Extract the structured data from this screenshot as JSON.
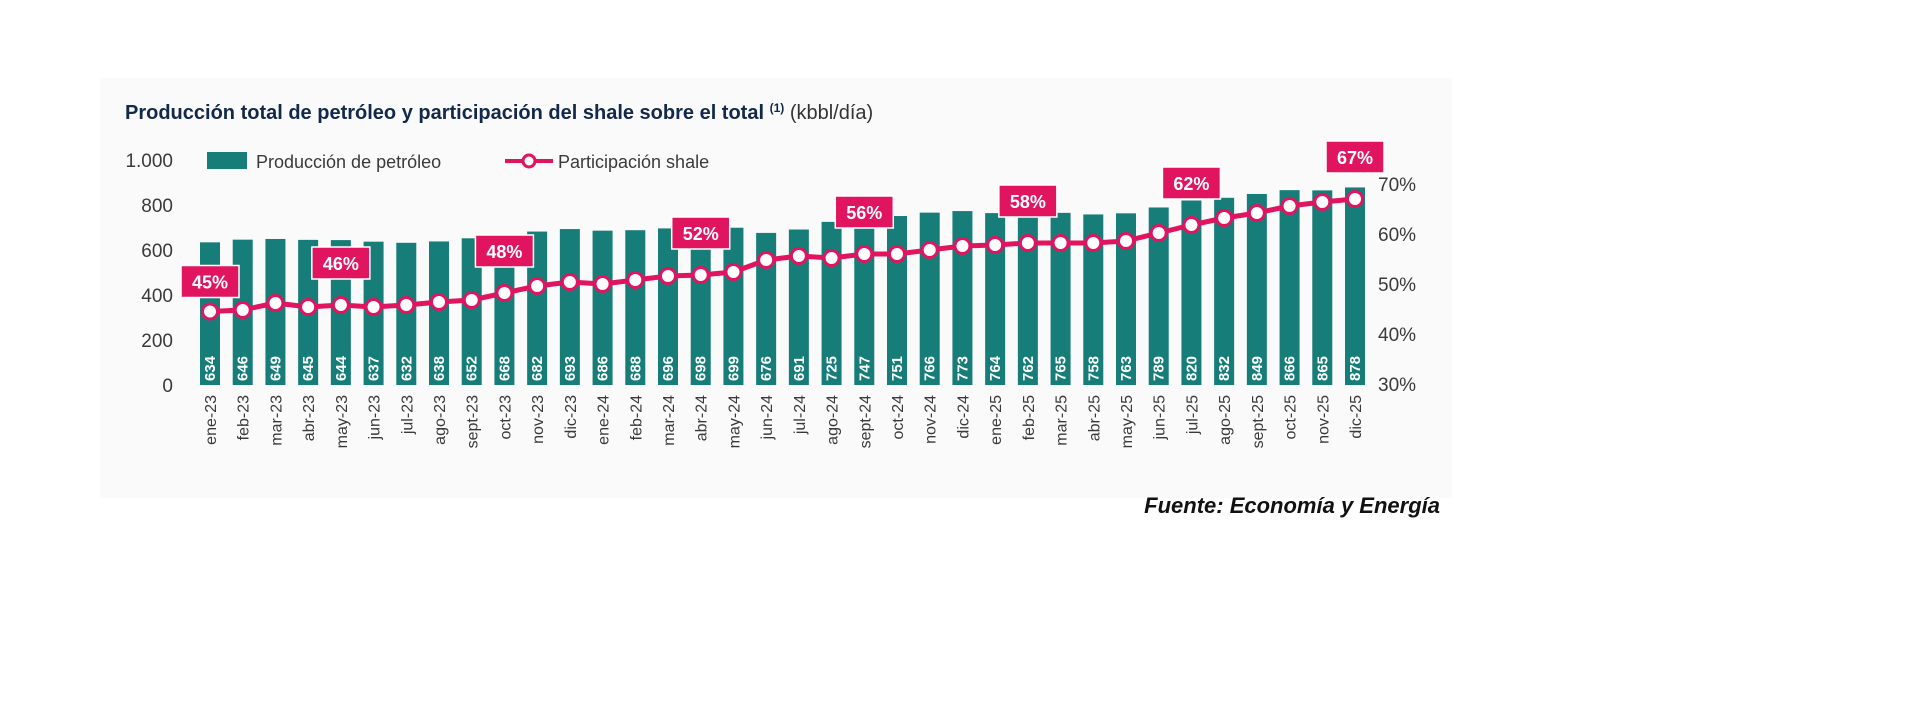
{
  "chart_data": {
    "type": "bar+line",
    "title": "Producción total de petróleo y participación del shale sobre el total",
    "title_superscript": "(1)",
    "title_unit": "(kbbl/día)",
    "categories": [
      "ene-23",
      "feb-23",
      "mar-23",
      "abr-23",
      "may-23",
      "jun-23",
      "jul-23",
      "ago-23",
      "sept-23",
      "oct-23",
      "nov-23",
      "dic-23",
      "ene-24",
      "feb-24",
      "mar-24",
      "abr-24",
      "may-24",
      "jun-24",
      "jul-24",
      "ago-24",
      "sept-24",
      "oct-24",
      "nov-24",
      "dic-24",
      "ene-25",
      "feb-25",
      "mar-25",
      "abr-25",
      "may-25",
      "jun-25",
      "jul-25",
      "ago-25",
      "sept-25",
      "oct-25",
      "nov-25",
      "dic-25"
    ],
    "series": [
      {
        "name": "Producción de petróleo",
        "type": "bar",
        "axis": "left",
        "color": "#177d78",
        "values": [
          634,
          646,
          649,
          645,
          644,
          637,
          632,
          638,
          652,
          668,
          682,
          693,
          686,
          688,
          696,
          698,
          699,
          676,
          691,
          725,
          747,
          751,
          766,
          773,
          764,
          762,
          765,
          758,
          763,
          789,
          820,
          832,
          849,
          866,
          865,
          878
        ]
      },
      {
        "name": "Participación shale",
        "type": "line",
        "axis": "right",
        "color": "#e0145f",
        "values": [
          44.5,
          44.8,
          46.2,
          45.4,
          45.8,
          45.4,
          45.8,
          46.4,
          46.8,
          48.2,
          49.6,
          50.4,
          50.0,
          50.8,
          51.6,
          51.8,
          52.4,
          54.8,
          55.6,
          55.2,
          56.0,
          56.0,
          56.8,
          57.6,
          57.8,
          58.2,
          58.2,
          58.2,
          58.6,
          60.2,
          61.8,
          63.2,
          64.2,
          65.6,
          66.4,
          67.0
        ]
      }
    ],
    "annotations": [
      {
        "index": 0,
        "text": "45%"
      },
      {
        "index": 4,
        "text": "46%"
      },
      {
        "index": 9,
        "text": "48%"
      },
      {
        "index": 15,
        "text": "52%"
      },
      {
        "index": 20,
        "text": "56%"
      },
      {
        "index": 25,
        "text": "58%"
      },
      {
        "index": 30,
        "text": "62%"
      },
      {
        "index": 35,
        "text": "67%"
      }
    ],
    "y_left": {
      "lim": [
        0,
        1000
      ],
      "ticks": [
        0,
        200,
        400,
        600,
        800,
        1000
      ],
      "tick_labels": [
        "0",
        "200",
        "400",
        "600",
        "800",
        "1.000"
      ]
    },
    "y_right": {
      "lim": [
        30,
        75
      ],
      "ticks": [
        30,
        40,
        50,
        60,
        70
      ],
      "tick_labels": [
        "30%",
        "40%",
        "50%",
        "60%",
        "70%"
      ]
    },
    "legend_position": "top-left",
    "grid": false
  },
  "source": "Fuente: Economía y Energía"
}
